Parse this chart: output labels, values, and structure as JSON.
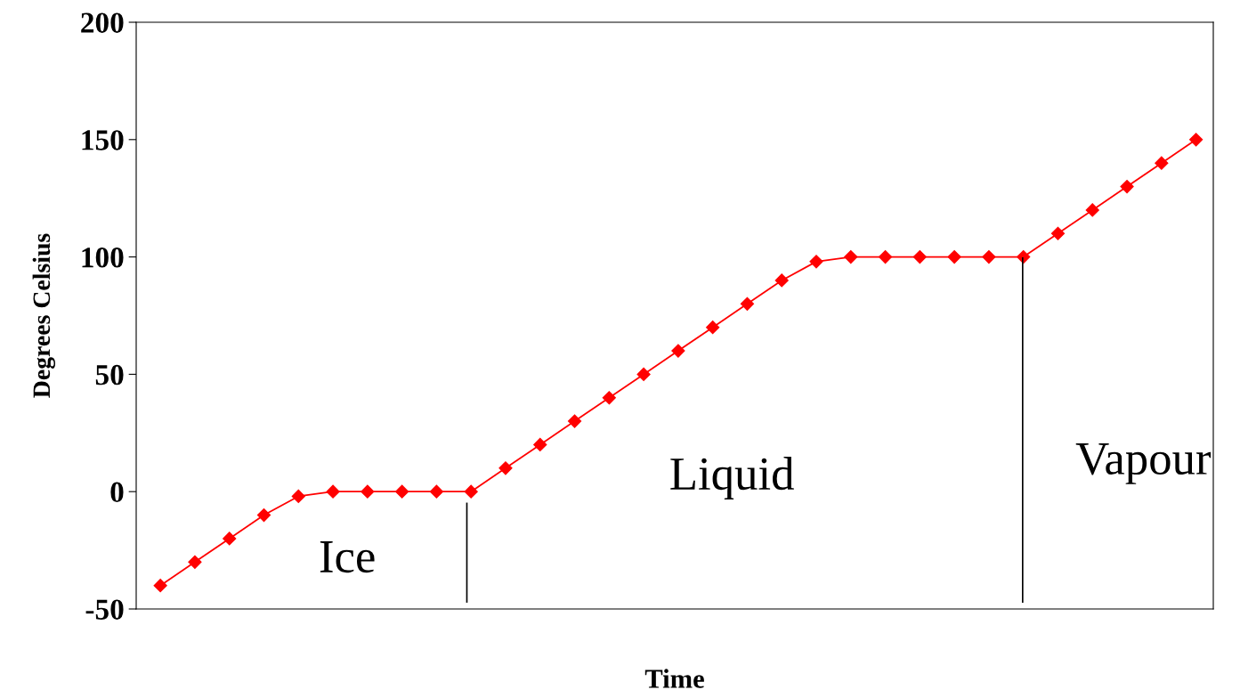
{
  "chart_data": {
    "type": "line",
    "xlabel": "Time",
    "ylabel": "Degrees Celsius",
    "categories": [
      null,
      null,
      null,
      null,
      null,
      null,
      null,
      null,
      null,
      null,
      null,
      null,
      null,
      null,
      null,
      null,
      null,
      null,
      null,
      null,
      null,
      null,
      null,
      null,
      null,
      null,
      null,
      null,
      null,
      null,
      null
    ],
    "series": [
      {
        "color": "#ff0000",
        "values": [
          -40,
          -30,
          -20,
          -10,
          -2,
          0,
          0,
          0,
          0,
          0,
          10,
          20,
          30,
          40,
          50,
          60,
          70,
          80,
          90,
          98,
          100,
          100,
          100,
          100,
          100,
          100,
          110,
          120,
          130,
          140,
          150
        ]
      }
    ],
    "ylim": [
      -50,
      200
    ],
    "yticks": [
      {
        "value": -50,
        "label": "-50"
      },
      0,
      50,
      100,
      150,
      200
    ],
    "grid": false,
    "legend": false,
    "marker": "diamond",
    "line_style": "solid",
    "annotations": [
      "Ice",
      "Liquid",
      "Vapour"
    ]
  }
}
